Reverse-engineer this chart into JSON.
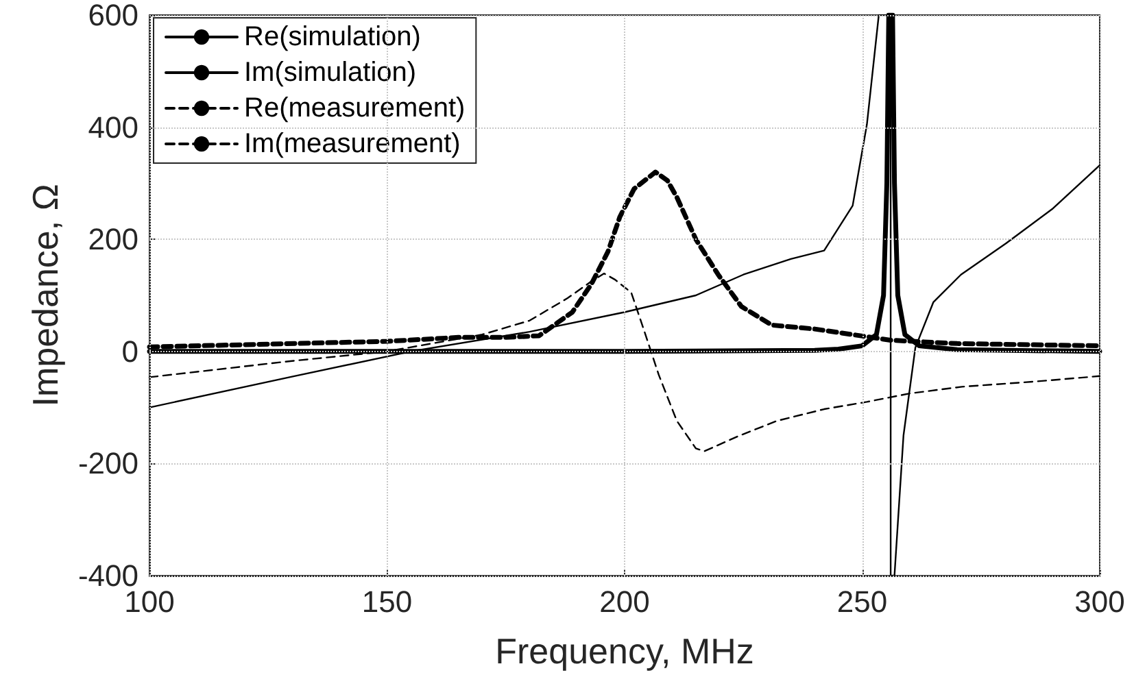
{
  "chart_data": {
    "type": "line",
    "xlabel": "Frequency, MHz",
    "ylabel": "Impedance, Ω",
    "xlim": [
      100,
      300
    ],
    "xticks": [
      100,
      150,
      200,
      250,
      300
    ],
    "ylim": [
      -400,
      600
    ],
    "yticks": [
      -400,
      -200,
      0,
      200,
      400,
      600
    ],
    "grid": true,
    "legend": "top left",
    "marker": "none",
    "series": [
      {
        "name": "Re(simulation)",
        "color": "#000000",
        "line_style": "solid",
        "x": [
          100,
          150,
          200,
          240,
          245,
          250,
          253,
          254.5,
          255.2,
          255.6,
          256.4,
          256.8,
          257.5,
          259,
          262,
          270,
          300
        ],
        "values": [
          0,
          0,
          0,
          2,
          4,
          10,
          30,
          100,
          300,
          600,
          600,
          300,
          100,
          30,
          10,
          3,
          0
        ]
      },
      {
        "name": "Im(simulation)",
        "color": "#000000",
        "line_style": "solid",
        "x": [
          100,
          130,
          155,
          180,
          200,
          215,
          225,
          235,
          242,
          248,
          251,
          253.5,
          256,
          256,
          256.8,
          258.7,
          261.2,
          265,
          270.8,
          280.3,
          290,
          300
        ],
        "values": [
          -100,
          -45,
          0,
          35,
          70,
          100,
          137,
          165,
          180,
          260,
          405,
          600,
          600,
          -400,
          -400,
          -150,
          7,
          88,
          137,
          193,
          254,
          332
        ]
      },
      {
        "name": "Re(measurement)",
        "color": "#000000",
        "line_style": "dashed",
        "x": [
          100,
          150,
          165,
          175,
          182,
          189,
          193,
          196.5,
          199,
          202,
          206.5,
          209,
          211,
          215,
          219.7,
          224.6,
          231,
          240,
          248,
          256,
          270,
          300
        ],
        "values": [
          8,
          18,
          25,
          25,
          28,
          70,
          120,
          178,
          240,
          290,
          320,
          305,
          275,
          200,
          137,
          80,
          47,
          40,
          30,
          20,
          14,
          10
        ]
      },
      {
        "name": "Im(measurement)",
        "color": "#000000",
        "line_style": "dashed",
        "x": [
          100,
          130,
          150,
          170,
          180,
          188,
          193,
          195.7,
          198,
          201.4,
          204,
          207.2,
          211,
          215,
          216.8,
          223.7,
          232,
          242,
          251,
          260,
          271,
          286,
          300
        ],
        "values": [
          -46,
          -17,
          0,
          30,
          55,
          95,
          125,
          139,
          128,
          105,
          40,
          -42,
          -124,
          -173,
          -178,
          -152,
          -124,
          -103,
          -90,
          -75,
          -63,
          -54,
          -44
        ]
      }
    ]
  }
}
